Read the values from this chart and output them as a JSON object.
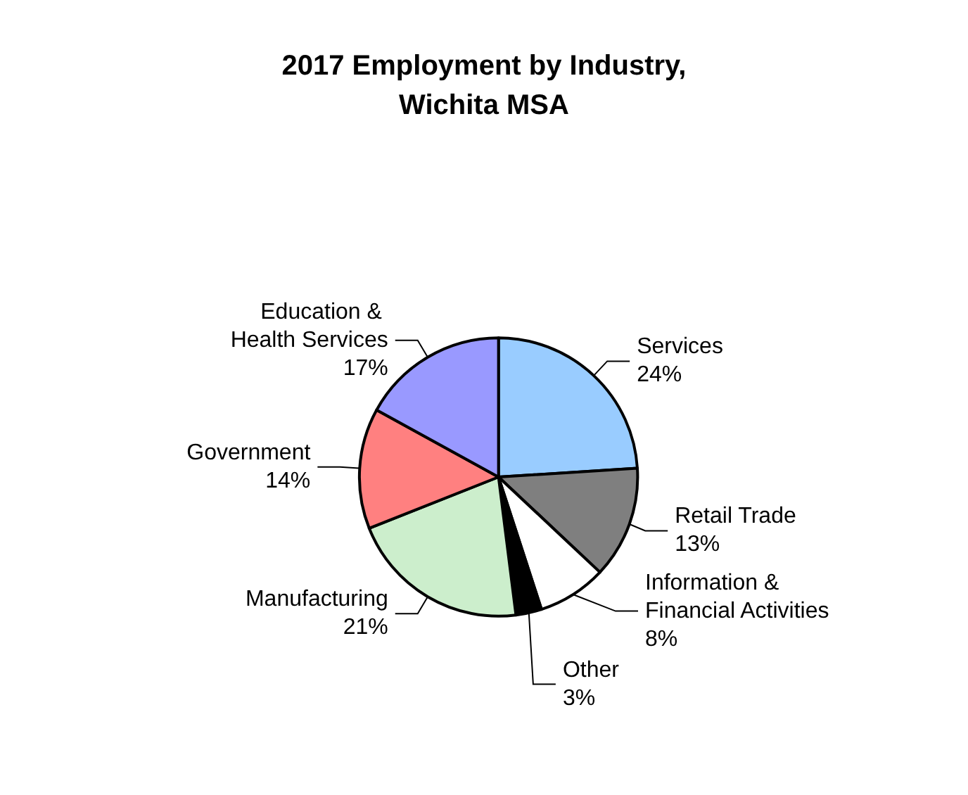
{
  "chart_data": {
    "type": "pie",
    "title": "2017 Employment by Industry,\nWichita MSA",
    "categories": [
      "Services",
      "Retail Trade",
      "Information & Financial Activities",
      "Other",
      "Manufacturing",
      "Government",
      "Education & Health Services"
    ],
    "values": [
      24,
      13,
      8,
      3,
      21,
      14,
      17
    ],
    "value_labels": [
      "24%",
      "13%",
      "8%",
      "3%",
      "21%",
      "14%",
      "17%"
    ],
    "colors": [
      "#99ccff",
      "#7f7f7f",
      "#ffffff",
      "#000000",
      "#cceecc",
      "#ff8080",
      "#9999ff"
    ],
    "legend": false
  }
}
